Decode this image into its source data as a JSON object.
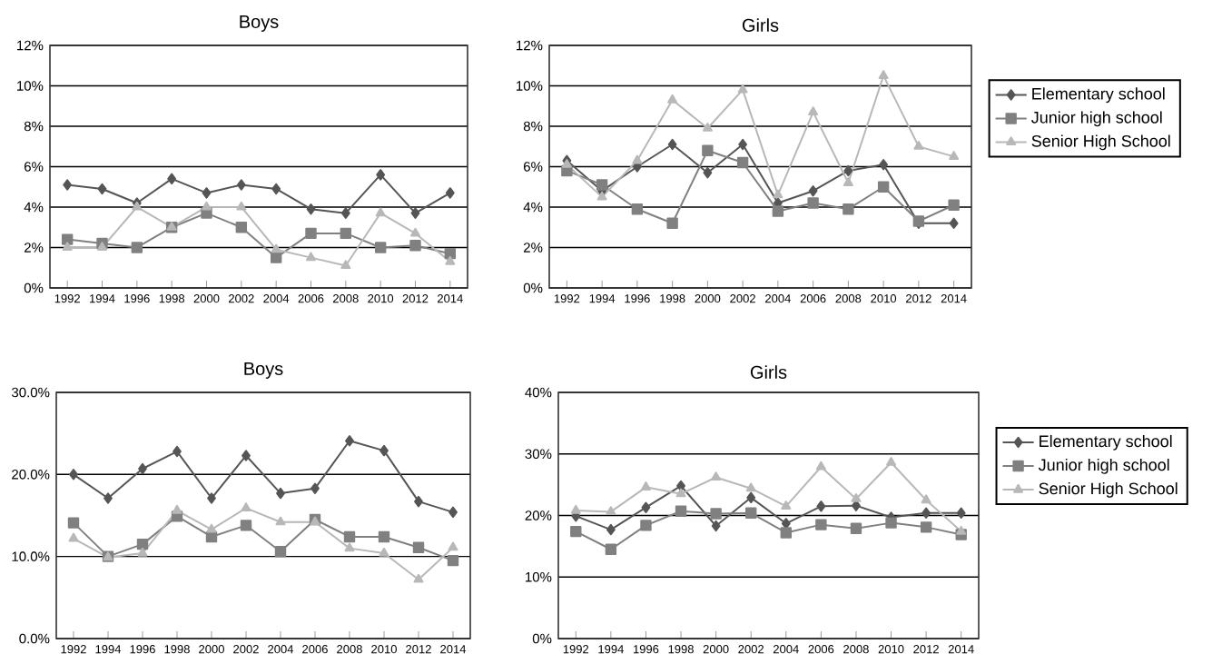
{
  "chart_data": [
    {
      "type": "line",
      "title": "Boys",
      "categories": [
        "1992",
        "1994",
        "1996",
        "1998",
        "2000",
        "2002",
        "2004",
        "2006",
        "2008",
        "2010",
        "2012",
        "2014"
      ],
      "series": [
        {
          "color": "#555555",
          "marker": "diamond",
          "values": [
            5.1,
            4.9,
            4.2,
            5.4,
            4.7,
            5.1,
            4.9,
            3.9,
            3.7,
            5.6,
            3.7,
            4.7
          ]
        },
        {
          "color": "#808080",
          "marker": "square",
          "values": [
            2.4,
            2.2,
            2.0,
            3.0,
            3.7,
            3.0,
            1.5,
            2.7,
            2.7,
            2.0,
            2.1,
            1.7
          ]
        },
        {
          "color": "#b8b8b8",
          "marker": "triangle",
          "values": [
            2.0,
            2.0,
            4.0,
            3.0,
            4.0,
            4.0,
            1.9,
            1.5,
            1.1,
            3.7,
            2.7,
            1.3
          ]
        }
      ],
      "ylim": [
        0,
        12
      ],
      "yticks": [
        {
          "value": 0,
          "label": "0%"
        },
        {
          "value": 2,
          "label": "2%"
        },
        {
          "value": 4,
          "label": "4%"
        },
        {
          "value": 6,
          "label": "6%"
        },
        {
          "value": 8,
          "label": "8%"
        },
        {
          "value": 10,
          "label": "10%"
        },
        {
          "value": 12,
          "label": "12%"
        }
      ],
      "grid": "y"
    },
    {
      "type": "line",
      "title": "Girls",
      "categories": [
        "1992",
        "1994",
        "1996",
        "1998",
        "2000",
        "2002",
        "2004",
        "2006",
        "2008",
        "2010",
        "2012",
        "2014"
      ],
      "series": [
        {
          "name": "Elementary school",
          "color": "#555555",
          "marker": "diamond",
          "values": [
            6.3,
            4.8,
            6.0,
            7.1,
            5.7,
            7.1,
            4.2,
            4.8,
            5.8,
            6.1,
            3.2,
            3.2
          ]
        },
        {
          "name": "Junior high school",
          "color": "#808080",
          "marker": "square",
          "values": [
            5.8,
            5.1,
            3.9,
            3.2,
            6.8,
            6.2,
            3.8,
            4.2,
            3.9,
            5.0,
            3.3,
            4.1
          ]
        },
        {
          "name": "Senior High School",
          "color": "#b8b8b8",
          "marker": "triangle",
          "values": [
            6.1,
            4.5,
            6.3,
            9.3,
            7.9,
            9.8,
            4.6,
            8.7,
            5.2,
            10.5,
            7.0,
            6.5
          ]
        }
      ],
      "ylim": [
        0,
        12
      ],
      "yticks": [
        {
          "value": 0,
          "label": "0%"
        },
        {
          "value": 2,
          "label": "2%"
        },
        {
          "value": 4,
          "label": "4%"
        },
        {
          "value": 6,
          "label": "6%"
        },
        {
          "value": 8,
          "label": "8%"
        },
        {
          "value": 10,
          "label": "10%"
        },
        {
          "value": 12,
          "label": "12%"
        }
      ],
      "grid": "y",
      "legend": "right"
    },
    {
      "type": "line",
      "title": "Boys",
      "categories": [
        "1992",
        "1994",
        "1996",
        "1998",
        "2000",
        "2002",
        "2004",
        "2006",
        "2008",
        "2010",
        "2012",
        "2014"
      ],
      "series": [
        {
          "color": "#555555",
          "marker": "diamond",
          "values": [
            20.0,
            17.1,
            20.7,
            22.8,
            17.1,
            22.3,
            17.7,
            18.3,
            24.1,
            22.9,
            16.7,
            15.4
          ]
        },
        {
          "color": "#808080",
          "marker": "square",
          "values": [
            14.1,
            10.0,
            11.5,
            14.9,
            12.4,
            13.8,
            10.6,
            14.5,
            12.4,
            12.4,
            11.1,
            9.5
          ]
        },
        {
          "color": "#b8b8b8",
          "marker": "triangle",
          "values": [
            12.2,
            9.9,
            10.4,
            15.6,
            13.3,
            15.9,
            14.2,
            14.2,
            11.0,
            10.4,
            7.2,
            11.1
          ]
        }
      ],
      "ylim": [
        0,
        30
      ],
      "yticks": [
        {
          "value": 0,
          "label": "0.0%"
        },
        {
          "value": 10,
          "label": "10.0%"
        },
        {
          "value": 20,
          "label": "20.0%"
        },
        {
          "value": 30,
          "label": "30.0%"
        }
      ],
      "grid": "y"
    },
    {
      "type": "line",
      "title": "Girls",
      "categories": [
        "1992",
        "1994",
        "1996",
        "1998",
        "2000",
        "2002",
        "2004",
        "2006",
        "2008",
        "2010",
        "2012",
        "2014"
      ],
      "series": [
        {
          "name": "Elementary school",
          "color": "#555555",
          "marker": "diamond",
          "values": [
            19.9,
            17.7,
            21.3,
            24.8,
            18.3,
            22.9,
            18.7,
            21.5,
            21.6,
            19.7,
            20.4,
            20.4
          ]
        },
        {
          "name": "Junior high school",
          "color": "#808080",
          "marker": "square",
          "values": [
            17.4,
            14.5,
            18.4,
            20.7,
            20.3,
            20.4,
            17.2,
            18.5,
            17.9,
            18.8,
            18.1,
            16.9
          ]
        },
        {
          "name": "Senior High School",
          "color": "#b8b8b8",
          "marker": "triangle",
          "values": [
            20.8,
            20.6,
            24.6,
            23.5,
            26.2,
            24.4,
            21.5,
            27.9,
            22.7,
            28.6,
            22.5,
            17.4
          ]
        }
      ],
      "ylim": [
        0,
        40
      ],
      "yticks": [
        {
          "value": 0,
          "label": "0%"
        },
        {
          "value": 10,
          "label": "10%"
        },
        {
          "value": 20,
          "label": "20%"
        },
        {
          "value": 30,
          "label": "30%"
        },
        {
          "value": 40,
          "label": "40%"
        }
      ],
      "grid": "y",
      "legend": "right"
    }
  ]
}
